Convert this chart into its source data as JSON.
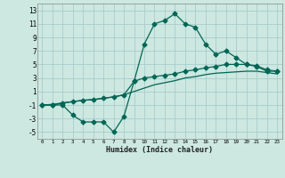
{
  "title": "",
  "xlabel": "Humidex (Indice chaleur)",
  "bg_color": "#cce8e0",
  "grid_color": "#aacccc",
  "line_color": "#006655",
  "xlim": [
    -0.5,
    23.5
  ],
  "ylim": [
    -6,
    14
  ],
  "xticks": [
    0,
    1,
    2,
    3,
    4,
    5,
    6,
    7,
    8,
    9,
    10,
    11,
    12,
    13,
    14,
    15,
    16,
    17,
    18,
    19,
    20,
    21,
    22,
    23
  ],
  "yticks": [
    -5,
    -3,
    -1,
    1,
    3,
    5,
    7,
    9,
    11,
    13
  ],
  "line1_x": [
    0,
    1,
    2,
    3,
    4,
    5,
    6,
    7,
    8,
    9,
    10,
    11,
    12,
    13,
    14,
    15,
    16,
    17,
    18,
    19,
    20,
    21,
    22,
    23
  ],
  "line1_y": [
    -1,
    -1,
    -1,
    -2.5,
    -3.5,
    -3.5,
    -3.5,
    -5,
    -2.7,
    2.5,
    8,
    11,
    11.5,
    12.5,
    11,
    10.5,
    8,
    6.5,
    7,
    6,
    5,
    4.7,
    4,
    4
  ],
  "line2_x": [
    0,
    1,
    2,
    3,
    4,
    5,
    6,
    7,
    8,
    9,
    10,
    11,
    12,
    13,
    14,
    15,
    16,
    17,
    18,
    19,
    20,
    21,
    22,
    23
  ],
  "line2_y": [
    -1,
    -1,
    -0.7,
    -0.5,
    -0.3,
    -0.2,
    0.0,
    0.2,
    0.5,
    2.5,
    3.0,
    3.2,
    3.4,
    3.6,
    4.0,
    4.2,
    4.5,
    4.7,
    5.0,
    5.0,
    5.0,
    4.8,
    4.2,
    4.0
  ],
  "line3_x": [
    0,
    1,
    2,
    3,
    4,
    5,
    6,
    7,
    8,
    9,
    10,
    11,
    12,
    13,
    14,
    15,
    16,
    17,
    18,
    19,
    20,
    21,
    22,
    23
  ],
  "line3_y": [
    -1,
    -0.9,
    -0.7,
    -0.5,
    -0.3,
    -0.2,
    0.0,
    0.2,
    0.5,
    1.0,
    1.5,
    2.0,
    2.3,
    2.6,
    3.0,
    3.2,
    3.5,
    3.7,
    3.8,
    3.9,
    4.0,
    4.0,
    3.8,
    3.6
  ],
  "marker": "D",
  "markersize": 2.5,
  "linewidth": 0.9
}
